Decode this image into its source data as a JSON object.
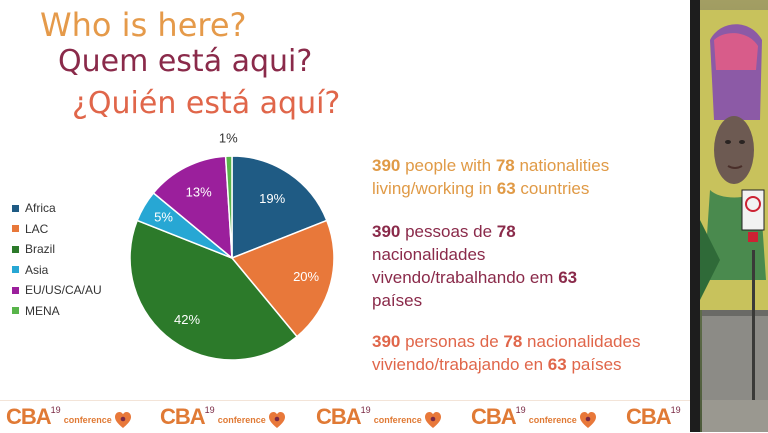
{
  "titles": {
    "en": "Who is here?",
    "pt": "Quem está aqui?",
    "es": "¿Quién está aquí?"
  },
  "chart_data": {
    "type": "pie",
    "slices": [
      {
        "label": "Africa",
        "value": 19,
        "text": "19%",
        "color": "#1f5b84"
      },
      {
        "label": "LAC",
        "value": 20,
        "text": "20%",
        "color": "#e8783a"
      },
      {
        "label": "Brazil",
        "value": 42,
        "text": "42%",
        "color": "#2c7a2a"
      },
      {
        "label": "Asia",
        "value": 5,
        "text": "5%",
        "color": "#27a7d4"
      },
      {
        "label": "EU/US/CA/AU",
        "value": 13,
        "text": "13%",
        "color": "#9b1f9c"
      },
      {
        "label": "MENA",
        "value": 1,
        "text": "1%",
        "color": "#58b44a"
      }
    ],
    "legend_position": "left"
  },
  "stats": {
    "people": "390",
    "nationalities": "78",
    "countries": "63",
    "en": {
      "a": " people with ",
      "b": " nationalities",
      "c": "living/working in ",
      "d": " countries"
    },
    "pt": {
      "a": " pessoas de ",
      "b": "nacionalidades",
      "c": "vivendo/trabalhando em ",
      "d": "países"
    },
    "es": {
      "a": " personas de ",
      "b": " nacionalidades",
      "c": "viviendo/trabajando en ",
      "d": " países"
    }
  },
  "footer": {
    "brand": "CBA",
    "edition": "19",
    "conference": "conference"
  },
  "colors": {
    "title_en": "#e59a4a",
    "title_pt": "#8a2a4a",
    "title_es": "#e0664a",
    "brand": "#e07a35"
  }
}
